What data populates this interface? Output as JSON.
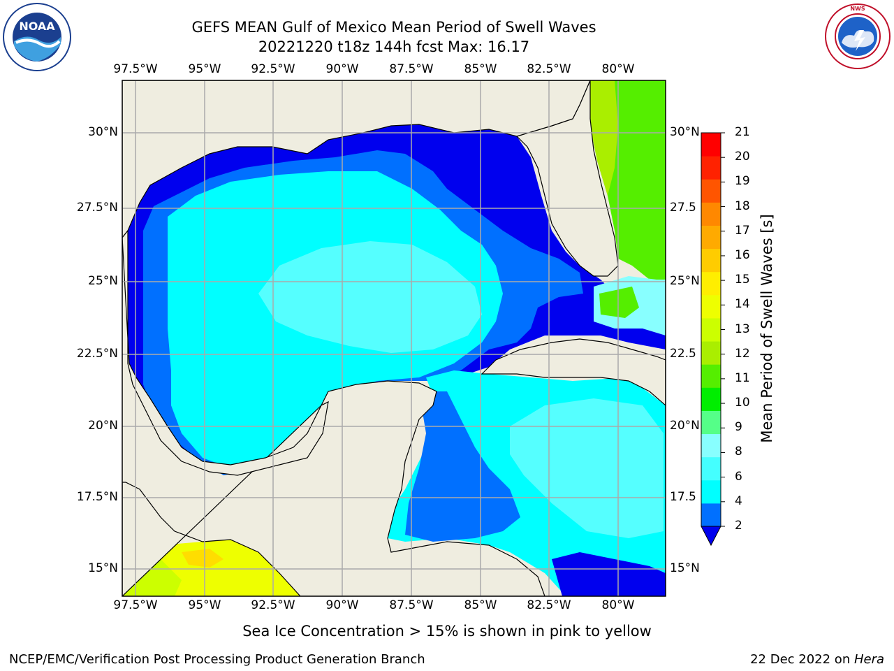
{
  "header": {
    "title_line1": "GEFS MEAN Gulf of Mexico Mean Period of Swell Waves",
    "title_line2": "20221220 t18z 144h fcst   Max: 16.17"
  },
  "logos": {
    "noaa_text": "NOAA",
    "noaa_ring_text": "NATIONAL OCEANIC AND ATMOSPHERIC ADMINISTRATION · U.S. DEPARTMENT OF COMMERCE",
    "nws_ring_text": "NATIONAL WEATHER SERVICE"
  },
  "map": {
    "lon_labels": [
      "97.5°W",
      "95°W",
      "92.5°W",
      "90°W",
      "87.5°W",
      "85°W",
      "82.5°W",
      "80°W"
    ],
    "lat_labels_left": [
      "30°N",
      "27.5°N",
      "25°N",
      "22.5°N",
      "20°N",
      "17.5°N",
      "15°N"
    ],
    "lat_labels_right": [
      "30°N",
      "27.5",
      "25°N",
      "22.5",
      "20°N",
      "17.5",
      "15°N"
    ],
    "colors": {
      "land": "#efede0",
      "grid": "#aaaaaa"
    }
  },
  "colorbar": {
    "label": "Mean Period of Swell Waves [s]",
    "ticks": [
      "21",
      "20",
      "19",
      "18",
      "17",
      "16",
      "15",
      "14",
      "13",
      "12",
      "11",
      "10",
      "9",
      "8",
      "6",
      "4",
      "2"
    ],
    "colors": [
      "#0000ee",
      "#0070ff",
      "#00ffff",
      "#44ffff",
      "#88ffff",
      "#55ff88",
      "#00ee00",
      "#55ee00",
      "#aaee00",
      "#ccff00",
      "#eeff00",
      "#ffee00",
      "#ffcc00",
      "#ffaa00",
      "#ff8800",
      "#ff5500",
      "#ff2200",
      "#ff0000"
    ]
  },
  "footer": {
    "note": "Sea Ice Concentration > 15% is shown in pink to yellow",
    "credit": "NCEP/EMC/Verification Post Processing Product Generation Branch",
    "date_prefix": "22 Dec 2022 on ",
    "date_host": "Hera"
  }
}
